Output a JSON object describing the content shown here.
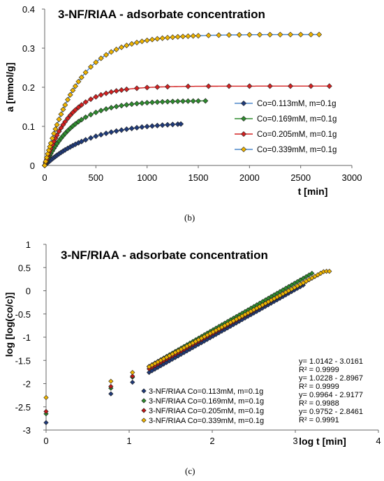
{
  "figure": {
    "panels": [
      {
        "label": "(b)"
      },
      {
        "label": "(c)"
      }
    ]
  },
  "chart_data": [
    {
      "type": "line",
      "title": "3-NF/RIAA - adsorbate concentration",
      "xlabel": "t [min]",
      "ylabel": "a [mmol/g]",
      "xlim": [
        0,
        3000
      ],
      "ylim": [
        0,
        0.4
      ],
      "xticks": [
        0,
        500,
        1000,
        1500,
        2000,
        2500,
        3000
      ],
      "yticks": [
        0,
        0.1,
        0.2,
        0.3,
        0.4
      ],
      "ytick_labels": [
        "0",
        "0.1",
        "0.2",
        "0.3",
        "0.4"
      ],
      "grid": false,
      "legend_position": "center-right",
      "series": [
        {
          "name": "Co=0.113mM, m=0.1g",
          "color": "#1f3a7a",
          "line_color": "#4a86c8",
          "marker": "diamond",
          "model": {
            "qe": 0.112,
            "k": 0.0022,
            "tmax": 1330
          },
          "x": [
            0,
            10,
            20,
            30,
            40,
            50,
            60,
            75,
            90,
            105,
            120,
            140,
            160,
            180,
            200,
            225,
            250,
            275,
            300,
            330,
            360,
            400,
            450,
            500,
            550,
            600,
            650,
            700,
            750,
            800,
            850,
            900,
            950,
            1000,
            1050,
            1100,
            1150,
            1200,
            1250,
            1300,
            1330
          ]
        },
        {
          "name": "Co=0.169mM, m=0.1g",
          "color": "#2e8b2e",
          "line_color": "#2e8b2e",
          "marker": "diamond",
          "model": {
            "qe": 0.166,
            "k": 0.0034,
            "tmax": 1570
          },
          "x": [
            0,
            10,
            20,
            30,
            40,
            50,
            60,
            75,
            90,
            105,
            120,
            140,
            160,
            180,
            200,
            225,
            250,
            275,
            300,
            330,
            360,
            400,
            450,
            500,
            550,
            600,
            650,
            700,
            750,
            800,
            850,
            900,
            950,
            1000,
            1050,
            1100,
            1150,
            1200,
            1250,
            1300,
            1350,
            1400,
            1450,
            1500,
            1570
          ]
        },
        {
          "name": "Co=0.205mM, m=0.1g",
          "color": "#d42020",
          "line_color": "#d42020",
          "marker": "diamond",
          "model": {
            "qe": 0.203,
            "k": 0.004,
            "tmax": 2780
          },
          "x": [
            0,
            10,
            20,
            30,
            40,
            50,
            60,
            75,
            90,
            105,
            120,
            140,
            160,
            180,
            200,
            225,
            250,
            275,
            300,
            330,
            360,
            400,
            450,
            500,
            550,
            600,
            650,
            700,
            750,
            800,
            900,
            1000,
            1100,
            1200,
            1400,
            1600,
            1800,
            2000,
            2200,
            2400,
            2600,
            2780
          ]
        },
        {
          "name": "Co=0.339mM, m=0.1g",
          "color": "#f0b400",
          "line_color": "#4a86c8",
          "marker": "diamond",
          "model": {
            "qe": 0.335,
            "k": 0.0031,
            "tmax": 2680
          },
          "x": [
            0,
            10,
            20,
            30,
            40,
            50,
            60,
            75,
            90,
            105,
            120,
            140,
            160,
            180,
            200,
            225,
            250,
            275,
            300,
            330,
            360,
            400,
            450,
            500,
            550,
            600,
            650,
            700,
            750,
            800,
            850,
            900,
            950,
            1000,
            1050,
            1100,
            1150,
            1200,
            1250,
            1300,
            1350,
            1400,
            1450,
            1500,
            1600,
            1700,
            1800,
            1900,
            2000,
            2100,
            2200,
            2300,
            2400,
            2500,
            2600,
            2680
          ]
        }
      ]
    },
    {
      "type": "scatter",
      "title": "3-NF/RIAA - adsorbate concentration",
      "xlabel": "log t [min]",
      "ylabel": "log [log(co/c)]",
      "xlim": [
        0,
        4
      ],
      "ylim": [
        -3,
        1
      ],
      "xticks": [
        0,
        1,
        2,
        3,
        4
      ],
      "yticks": [
        -3,
        -2.5,
        -2,
        -1.5,
        -1,
        -0.5,
        0,
        0.5,
        1
      ],
      "ytick_labels": [
        "-3",
        "-2.5",
        "-2",
        "-1.5",
        "-1",
        "-0.5",
        "0",
        "0.5",
        "1"
      ],
      "grid": false,
      "legend_position": "bottom-right",
      "equations": [
        "y= 1.0142 - 3.0161",
        "R² = 0.9999",
        "y= 1.0228 - 2.8967",
        "R² = 0.9999",
        "y= 0.9964 - 2.9177",
        "R² = 0.9988",
        "y= 0.9752 - 2.8461",
        "R² = 0.9991"
      ],
      "series": [
        {
          "name": "3-NF/RIAA Co=0.113mM, m=0.1g",
          "color": "#1f3a7a",
          "marker": "diamond",
          "x_range": [
            1.24,
            3.12
          ],
          "line": {
            "slope": 1.0142,
            "intercept": -3.0161
          },
          "first_points": [
            [
              0,
              -2.84
            ],
            [
              0.78,
              -2.22
            ],
            [
              1.04,
              -1.97
            ]
          ]
        },
        {
          "name": "3-NF/RIAA Co=0.169mM, m=0.1g",
          "color": "#2e8b2e",
          "marker": "diamond",
          "x_range": [
            1.24,
            3.2
          ],
          "line": {
            "slope": 1.0228,
            "intercept": -2.8967
          },
          "first_points": [
            [
              0,
              -2.65
            ],
            [
              0.78,
              -2.1
            ],
            [
              1.04,
              -1.86
            ]
          ]
        },
        {
          "name": "3-NF/RIAA Co=0.205mM, m=0.1g",
          "color": "#c01818",
          "marker": "diamond",
          "x_range": [
            1.24,
            3.32
          ],
          "line": {
            "slope": 0.9964,
            "intercept": -2.9177
          },
          "first_points": [
            [
              0,
              -2.6
            ],
            [
              0.78,
              -2.06
            ],
            [
              1.04,
              -1.84
            ]
          ]
        },
        {
          "name": "3-NF/RIAA Co=0.339mM, m=0.1g",
          "color": "#f0b400",
          "marker": "diamond",
          "x_range": [
            1.24,
            3.43
          ],
          "line": {
            "slope": 0.9752,
            "intercept": -2.8461
          },
          "first_points": [
            [
              0,
              -2.3
            ],
            [
              0.78,
              -1.95
            ],
            [
              1.04,
              -1.76
            ]
          ]
        }
      ]
    }
  ]
}
